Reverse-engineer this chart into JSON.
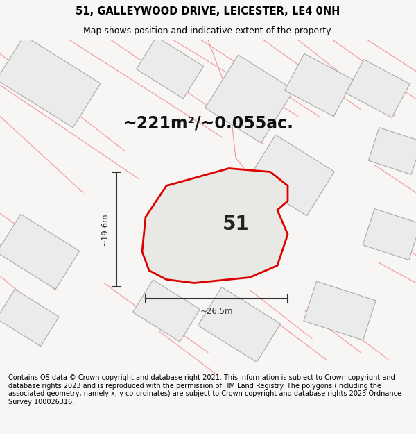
{
  "title_line1": "51, GALLEYWOOD DRIVE, LEICESTER, LE4 0NH",
  "title_line2": "Map shows position and indicative extent of the property.",
  "area_text": "~221m²/~0.055ac.",
  "dim_height": "~19.6m",
  "dim_width": "~26.5m",
  "label_51": "51",
  "footer": "Contains OS data © Crown copyright and database right 2021. This information is subject to Crown copyright and database rights 2023 and is reproduced with the permission of HM Land Registry. The polygons (including the associated geometry, namely x, y co-ordinates) are subject to Crown copyright and database rights 2023 Ordnance Survey 100026316.",
  "bg_color": "#f7f6f4",
  "map_bg": "#ffffff",
  "building_fill": "#ebebeb",
  "building_edge": "#aaaaaa",
  "road_color": "#f0a0a0",
  "main_fill": "#e8e8e4",
  "main_edge": "#dd0000",
  "dim_color": "#333333",
  "title_fontsize": 10.5,
  "subtitle_fontsize": 9,
  "area_fontsize": 17,
  "label_fontsize": 20,
  "footer_fontsize": 7.0
}
